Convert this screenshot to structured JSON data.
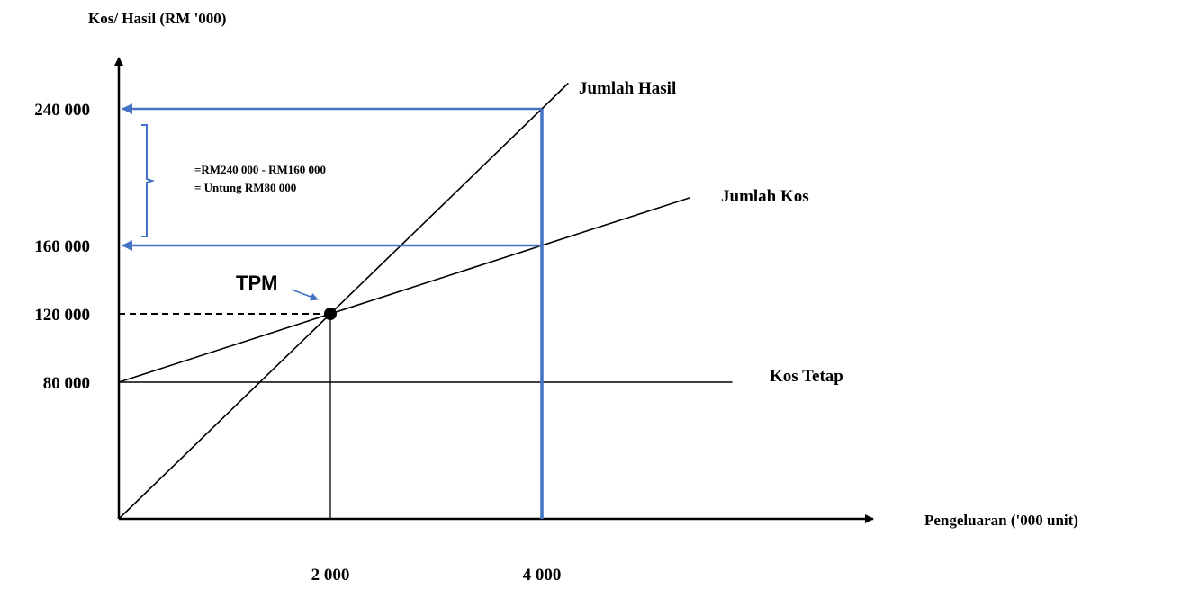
{
  "chart_data": {
    "type": "line",
    "title": "",
    "xlabel": "Pengeluaran ('000 unit)",
    "ylabel": "Kos/ Hasil (RM '000)",
    "xlim": [
      0,
      8500
    ],
    "ylim": [
      0,
      288000
    ],
    "x_ticks": [
      {
        "value": 2000,
        "label": "2 000"
      },
      {
        "value": 4000,
        "label": "4 000"
      }
    ],
    "y_ticks": [
      {
        "value": 240000,
        "label": "240 000"
      },
      {
        "value": 160000,
        "label": "160 000"
      },
      {
        "value": 120000,
        "label": "120 000"
      },
      {
        "value": 80000,
        "label": "80 000"
      }
    ],
    "series": [
      {
        "name": "Jumlah Hasil",
        "x": [
          0,
          2000,
          4000,
          4250
        ],
        "y": [
          0,
          120000,
          240000,
          255000
        ]
      },
      {
        "name": "Jumlah Kos",
        "x": [
          0,
          2000,
          4000,
          5400
        ],
        "y": [
          80000,
          120000,
          160000,
          188000
        ]
      },
      {
        "name": "Kos Tetap",
        "x": [
          0,
          5800
        ],
        "y": [
          80000,
          80000
        ]
      }
    ],
    "break_even": {
      "label": "TPM",
      "x": 2000,
      "y": 120000
    },
    "annotation": {
      "line1": "=RM240 000 - RM160 000",
      "line2": "= Untung RM80 000"
    },
    "highlight": {
      "x": 4000,
      "y_top": 240000,
      "y_mid": 160000,
      "color": "#4472c4"
    },
    "grid": false,
    "legend": "none"
  }
}
